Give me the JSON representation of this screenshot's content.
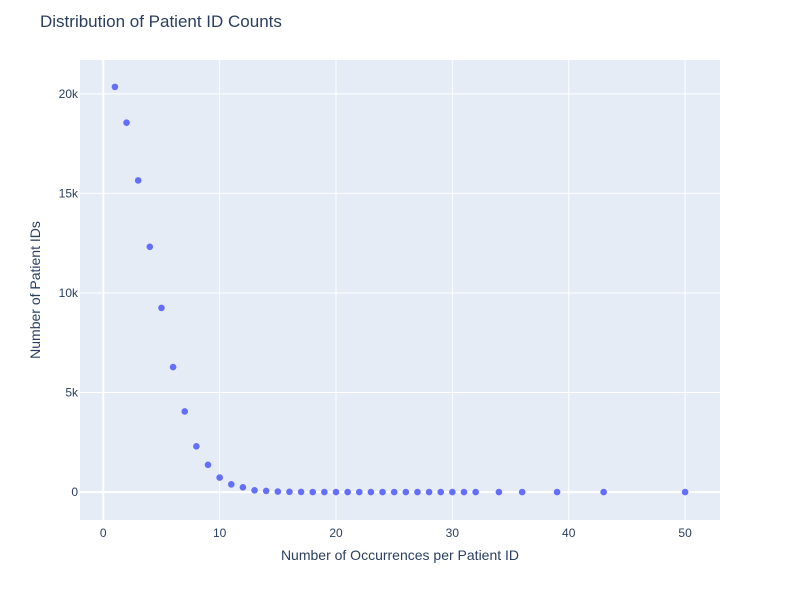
{
  "chart_data": {
    "type": "scatter",
    "title": "Distribution of Patient ID Counts",
    "xlabel": "Number of Occurrences per Patient ID",
    "ylabel": "Number of Patient IDs",
    "xlim": [
      -2,
      53
    ],
    "ylim": [
      -1400,
      21700
    ],
    "x_ticks": [
      0,
      10,
      20,
      30,
      40,
      50
    ],
    "x_tick_labels": [
      "0",
      "10",
      "20",
      "30",
      "40",
      "50"
    ],
    "y_ticks": [
      0,
      5000,
      10000,
      15000,
      20000
    ],
    "y_tick_labels": [
      "0",
      "5k",
      "10k",
      "15k",
      "20k"
    ],
    "grid": true,
    "colors": {
      "marker": "#636efa",
      "plot_bg": "#e5ecf6",
      "grid": "#ffffff",
      "text": "#2a3f5f"
    },
    "series": [
      {
        "x": [
          1,
          2,
          3,
          4,
          5,
          6,
          7,
          8,
          9,
          10,
          11,
          12,
          13,
          14,
          15,
          16,
          17,
          18,
          19,
          20,
          21,
          22,
          23,
          24,
          25,
          26,
          27,
          28,
          29,
          30,
          31,
          32,
          34,
          36,
          39,
          43,
          50
        ],
        "y": [
          20350,
          18550,
          15650,
          12320,
          9250,
          6280,
          4050,
          2300,
          1370,
          730,
          390,
          240,
          90,
          60,
          30,
          15,
          10,
          5,
          3,
          2,
          2,
          1,
          1,
          1,
          1,
          1,
          1,
          1,
          1,
          1,
          1,
          1,
          1,
          1,
          1,
          1,
          1
        ]
      }
    ]
  }
}
